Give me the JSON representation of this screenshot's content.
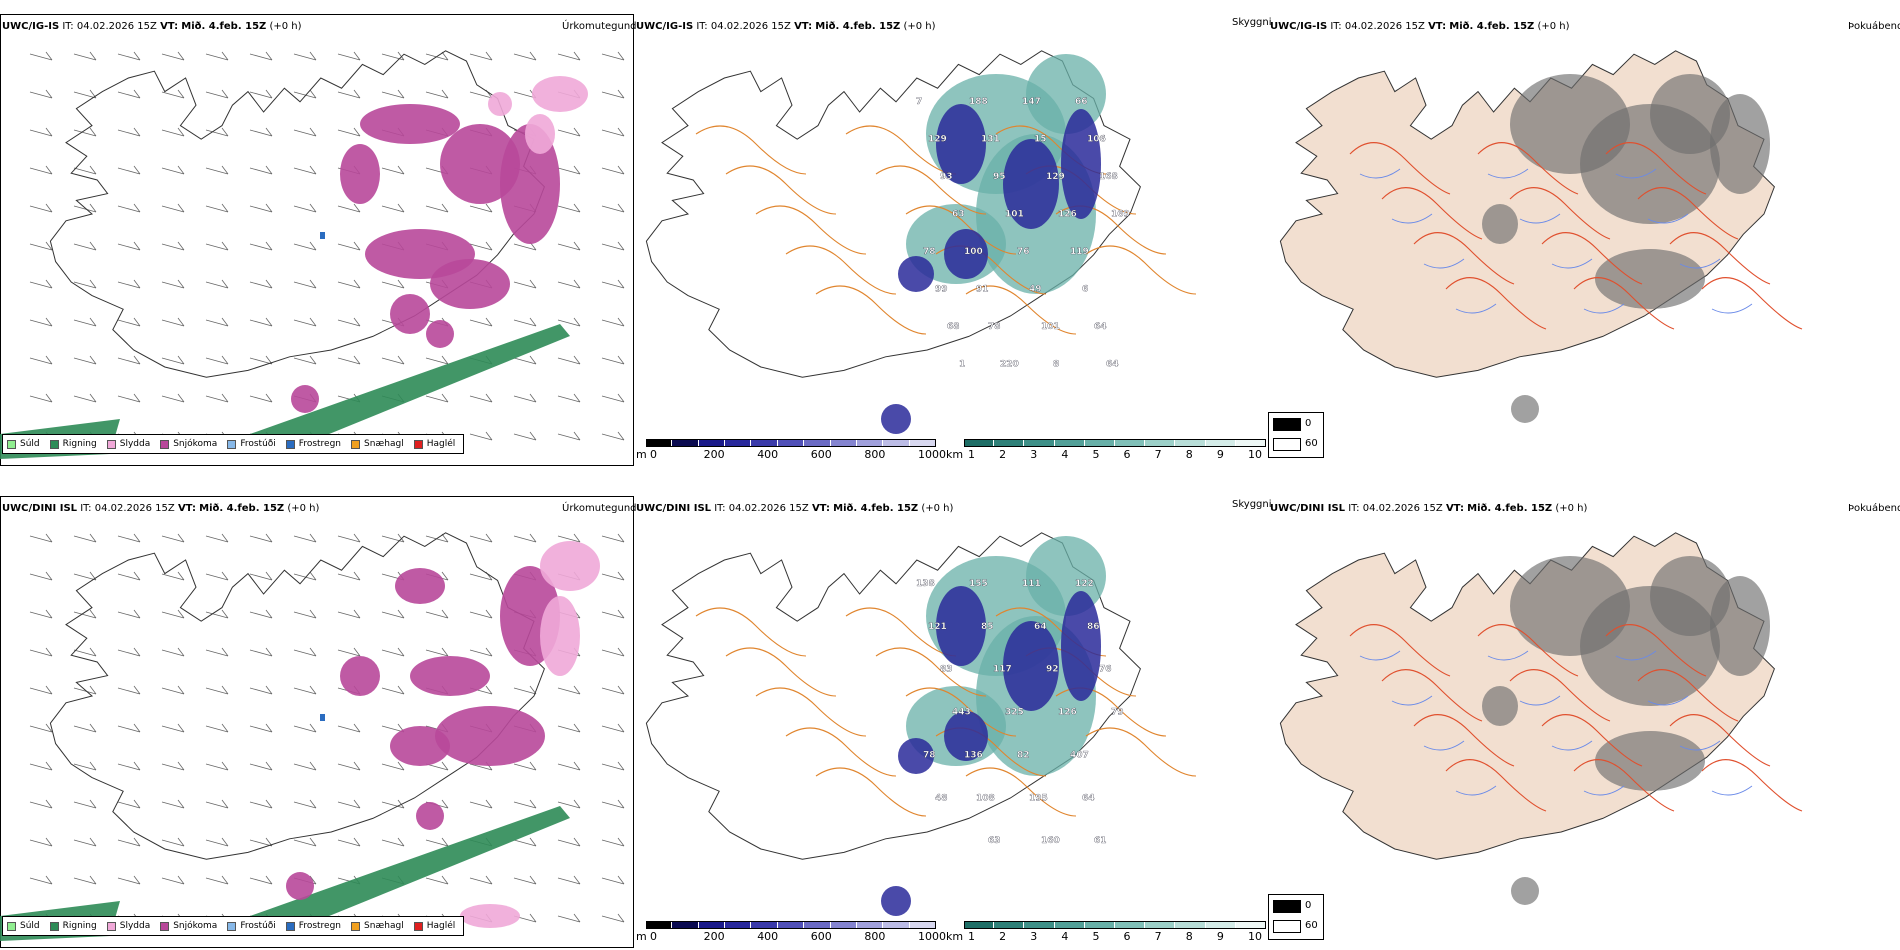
{
  "rows": [
    {
      "model": "UWC/IG-IS",
      "it_label": "IT:",
      "it_value": "04.02.2026 15Z",
      "vt_label": "VT:",
      "vt_value": "Mið. 4.feb. 15Z",
      "lead": "(+0 h)",
      "panel1_title": "Úrkomutegund",
      "panel2_title": "Skyggni",
      "panel3_title": "Þokuábendi",
      "visibility_labels": [
        "7",
        "188",
        "147",
        "66",
        "129",
        "131",
        "15",
        "106",
        "93",
        "95",
        "129",
        "168",
        "63",
        "101",
        "126",
        "169",
        "100",
        "76",
        "119",
        "78",
        "91",
        "49",
        "6",
        "99",
        "78",
        "101",
        "64",
        "68",
        "220",
        "8",
        "64",
        "1"
      ]
    },
    {
      "model": "UWC/DINI ISL",
      "it_label": "IT:",
      "it_value": "04.02.2026 15Z",
      "vt_label": "VT:",
      "vt_value": "Mið. 4.feb. 15Z",
      "lead": "(+0 h)",
      "panel1_title": "Úrkomutegund",
      "panel2_title": "Skyggni",
      "panel3_title": "Þokuábendi",
      "visibility_labels": [
        "138",
        "155",
        "111",
        "122",
        "121",
        "85",
        "64",
        "86",
        "83",
        "117",
        "92",
        "76",
        "443",
        "325",
        "126",
        "79",
        "136",
        "82",
        "407",
        "78",
        "108",
        "195",
        "64",
        "48",
        "63",
        "160",
        "61"
      ]
    }
  ],
  "precip_legend": [
    {
      "label": "Súld",
      "color": "#90ee90"
    },
    {
      "label": "Rigning",
      "color": "#2e8b57"
    },
    {
      "label": "Slydda",
      "color": "#f0a8d8"
    },
    {
      "label": "Snjókoma",
      "color": "#b8489a"
    },
    {
      "label": "Frostúði",
      "color": "#87b8e8"
    },
    {
      "label": "Frostregn",
      "color": "#2a6cc0"
    },
    {
      "label": "Snæhagl",
      "color": "#f0a020"
    },
    {
      "label": "Haglél",
      "color": "#e02020"
    }
  ],
  "height_bar": {
    "unit": "m",
    "ticks": [
      "0",
      "200",
      "400",
      "600",
      "800",
      "1000"
    ],
    "colors": [
      "#000000",
      "#0a0a50",
      "#1a1a8a",
      "#28289c",
      "#3a3aaa",
      "#5050b8",
      "#6a6ac4",
      "#8484d0",
      "#a0a0dc",
      "#bcbce6",
      "#d8d8f0"
    ]
  },
  "visibility_bar": {
    "unit": "km",
    "ticks": [
      "1",
      "2",
      "3",
      "4",
      "5",
      "6",
      "7",
      "8",
      "9",
      "10"
    ],
    "colors": [
      "#1e6e66",
      "#2e8078",
      "#3e9088",
      "#52a098",
      "#68b0a8",
      "#80c0b8",
      "#9cd0c8",
      "#b8ded8",
      "#d4ece8",
      "#eef8f6"
    ]
  },
  "fog_legend": [
    {
      "label": "0",
      "color": "#000000"
    },
    {
      "label": "60",
      "color": "#ffffff"
    }
  ]
}
